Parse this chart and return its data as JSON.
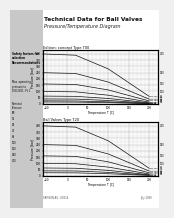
{
  "title": "Technical Data for Ball Valves",
  "subtitle": "Pressure/Temperature Diagram",
  "bg_color": "#f0f0f0",
  "page_bg": "#ffffff",
  "chart1_title": "Edition: concept Type 700",
  "chart2_title": "Ball Valves Type 720",
  "left_panel_text": "Safety factors for\nselection\nRecommendations\n\nMax. operating pressure to\nDIN 2401: Pt 1 (22)\n\nNominal\nPressure\nPN\n16\n25\n40\n63\n100\n160\n250\n400",
  "chart1": {
    "temp_x_label": "Temperature T [C]",
    "pressure_y_label": "Pressure [bar]",
    "lines": [
      {
        "label": "PN 400",
        "x": [
          -60,
          20,
          100,
          200
        ],
        "y": [
          400,
          390,
          280,
          60
        ]
      },
      {
        "label": "PN 250",
        "x": [
          -60,
          20,
          100,
          200
        ],
        "y": [
          250,
          244,
          175,
          38
        ]
      },
      {
        "label": "PN 160",
        "x": [
          -60,
          20,
          100,
          200
        ],
        "y": [
          160,
          156,
          112,
          24
        ]
      },
      {
        "label": "PN 100",
        "x": [
          -60,
          20,
          100,
          200
        ],
        "y": [
          100,
          97,
          70,
          15
        ]
      },
      {
        "label": "PN 63",
        "x": [
          -60,
          20,
          100,
          200
        ],
        "y": [
          63,
          61,
          44,
          9
        ]
      },
      {
        "label": "PN 40",
        "x": [
          -60,
          20,
          100,
          200
        ],
        "y": [
          40,
          39,
          28,
          6
        ]
      },
      {
        "label": "PN 25",
        "x": [
          -60,
          20,
          100,
          200
        ],
        "y": [
          25,
          24,
          17,
          4
        ]
      },
      {
        "label": "PN 16",
        "x": [
          -60,
          20,
          100,
          200
        ],
        "y": [
          16,
          15,
          11,
          2
        ]
      }
    ],
    "xticks": [
      -60,
      -20,
      20,
      60,
      100,
      140,
      200
    ],
    "xlim": [
      -60,
      220
    ],
    "ylim": [
      0,
      430
    ]
  },
  "chart2": {
    "temp_x_label": "Temperature T [C]",
    "pressure_y_label": "Pressure [bar]",
    "lines": [
      {
        "label": "PN 400",
        "x": [
          -60,
          20,
          100,
          200
        ],
        "y": [
          400,
          390,
          280,
          60
        ]
      },
      {
        "label": "PN 250",
        "x": [
          -60,
          20,
          100,
          200
        ],
        "y": [
          250,
          244,
          175,
          38
        ]
      },
      {
        "label": "PN 160",
        "x": [
          -60,
          20,
          100,
          200
        ],
        "y": [
          160,
          156,
          112,
          24
        ]
      },
      {
        "label": "PN 100",
        "x": [
          -60,
          20,
          100,
          200
        ],
        "y": [
          100,
          97,
          70,
          15
        ]
      },
      {
        "label": "PN 63",
        "x": [
          -60,
          20,
          100,
          200
        ],
        "y": [
          63,
          61,
          44,
          9
        ]
      },
      {
        "label": "PN 40",
        "x": [
          -60,
          20,
          100,
          200
        ],
        "y": [
          40,
          39,
          28,
          6
        ]
      },
      {
        "label": "PN 25",
        "x": [
          -60,
          20,
          100,
          200
        ],
        "y": [
          25,
          24,
          17,
          4
        ]
      }
    ],
    "xlim": [
      -60,
      220
    ],
    "ylim": [
      0,
      430
    ]
  },
  "footer_left": "SAMSON AG . 60314",
  "footer_right": "July 1999",
  "gray_strip_color": "#c8c8c8",
  "grid_color": "#999999",
  "line_color": "#111111"
}
